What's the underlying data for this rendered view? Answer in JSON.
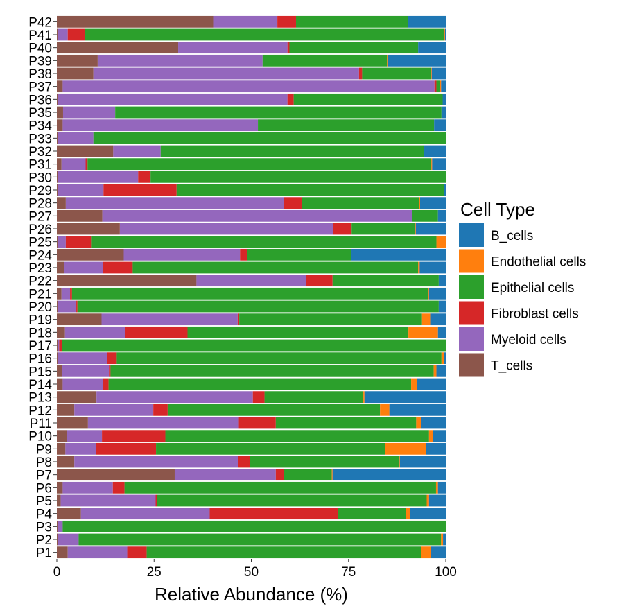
{
  "chart_data": {
    "type": "bar",
    "orientation": "horizontal",
    "stacked": true,
    "xlabel": "Relative Abundance (%)",
    "ylabel": "",
    "xlim": [
      0,
      100
    ],
    "xticks": [
      0,
      25,
      50,
      75,
      100
    ],
    "grid": false,
    "legend": {
      "title": "Cell Type",
      "placement": "right"
    },
    "categories": [
      "P1",
      "P2",
      "P3",
      "P4",
      "P5",
      "P6",
      "P7",
      "P8",
      "P9",
      "P10",
      "P11",
      "P12",
      "P13",
      "P14",
      "P15",
      "P16",
      "P17",
      "P18",
      "P19",
      "P20",
      "P21",
      "P22",
      "P23",
      "P24",
      "P25",
      "P26",
      "P27",
      "P28",
      "P29",
      "P30",
      "P31",
      "P32",
      "P33",
      "P34",
      "P35",
      "P36",
      "P37",
      "P38",
      "P39",
      "P40",
      "P41",
      "P42"
    ],
    "series": [
      {
        "name": "T_cells",
        "color": "#8c564b",
        "values": [
          2.8,
          0.3,
          0.3,
          6.2,
          1.0,
          1.5,
          30.3,
          4.5,
          2.2,
          2.6,
          8.0,
          4.5,
          10.2,
          1.5,
          1.3,
          0.3,
          0.3,
          2.1,
          11.5,
          0.3,
          1.2,
          35.9,
          1.8,
          17.2,
          0.3,
          16.2,
          11.7,
          2.3,
          0.3,
          0.3,
          1.2,
          14.5,
          0.3,
          1.5,
          1.6,
          0.3,
          1.5,
          9.4,
          10.5,
          31.2,
          0.3,
          40.2
        ]
      },
      {
        "name": "Myeloid cells",
        "color": "#9467bd",
        "values": [
          15.3,
          5.3,
          1.2,
          33.1,
          24.4,
          12.9,
          26.0,
          42.1,
          7.8,
          9.0,
          38.8,
          20.3,
          40.2,
          10.3,
          12.1,
          12.6,
          0.3,
          15.5,
          35.0,
          4.7,
          2.2,
          28.1,
          10.1,
          29.9,
          2.0,
          54.8,
          79.6,
          56.0,
          11.7,
          20.6,
          6.2,
          12.2,
          9.1,
          50.2,
          13.4,
          59.0,
          95.6,
          68.3,
          42.4,
          28.1,
          2.5,
          16.5
        ]
      },
      {
        "name": "Fibroblast cells",
        "color": "#d62728",
        "values": [
          5.0,
          0.0,
          0.0,
          33.0,
          0.3,
          3.0,
          2.0,
          3.0,
          15.5,
          16.3,
          9.5,
          3.7,
          3.0,
          1.5,
          0.4,
          2.5,
          0.7,
          16.0,
          0.4,
          0.3,
          0.5,
          6.9,
          7.6,
          1.8,
          6.5,
          4.8,
          0.0,
          4.8,
          18.8,
          3.2,
          0.5,
          0.0,
          0.0,
          0.0,
          0.0,
          1.6,
          0.5,
          0.8,
          0.0,
          0.5,
          4.5,
          4.8
        ]
      },
      {
        "name": "Epithelial cells",
        "color": "#2ca02c",
        "values": [
          70.6,
          93.2,
          98.5,
          17.4,
          69.4,
          80.1,
          12.4,
          38.4,
          58.9,
          67.8,
          36.1,
          54.6,
          25.4,
          77.8,
          83.1,
          83.5,
          98.7,
          56.8,
          47.0,
          92.9,
          91.5,
          27.3,
          73.4,
          26.8,
          88.8,
          16.3,
          6.7,
          30.0,
          68.8,
          75.9,
          88.4,
          67.6,
          90.6,
          45.3,
          83.9,
          38.3,
          0.9,
          17.7,
          32.0,
          33.1,
          92.2,
          28.8
        ]
      },
      {
        "name": "Endothelial cells",
        "color": "#ff7f0e",
        "values": [
          2.4,
          0.5,
          0.0,
          1.2,
          0.6,
          0.5,
          0.2,
          0.2,
          10.6,
          1.0,
          1.2,
          2.4,
          0.3,
          1.5,
          0.7,
          0.6,
          0.0,
          7.6,
          2.1,
          0.0,
          0.3,
          0.0,
          0.4,
          0.0,
          2.4,
          0.2,
          0.0,
          0.3,
          0.0,
          0.0,
          0.2,
          0.0,
          0.0,
          0.0,
          0.0,
          0.0,
          0.3,
          0.2,
          0.3,
          0.0,
          0.3,
          0.0
        ]
      },
      {
        "name": "B_cells",
        "color": "#1f77b4",
        "values": [
          3.9,
          0.7,
          0.0,
          9.1,
          4.3,
          2.0,
          29.1,
          11.8,
          5.0,
          3.3,
          6.4,
          14.5,
          20.9,
          7.4,
          2.4,
          0.5,
          0.0,
          2.0,
          4.0,
          1.8,
          4.3,
          1.8,
          6.7,
          24.3,
          0.0,
          7.7,
          2.0,
          6.6,
          0.4,
          0.0,
          3.5,
          5.7,
          0.0,
          3.0,
          1.1,
          0.8,
          1.2,
          3.6,
          14.8,
          7.1,
          0.2,
          9.7
        ]
      }
    ],
    "legend_order": [
      "B_cells",
      "Endothelial cells",
      "Epithelial cells",
      "Fibroblast cells",
      "Myeloid cells",
      "T_cells"
    ]
  }
}
